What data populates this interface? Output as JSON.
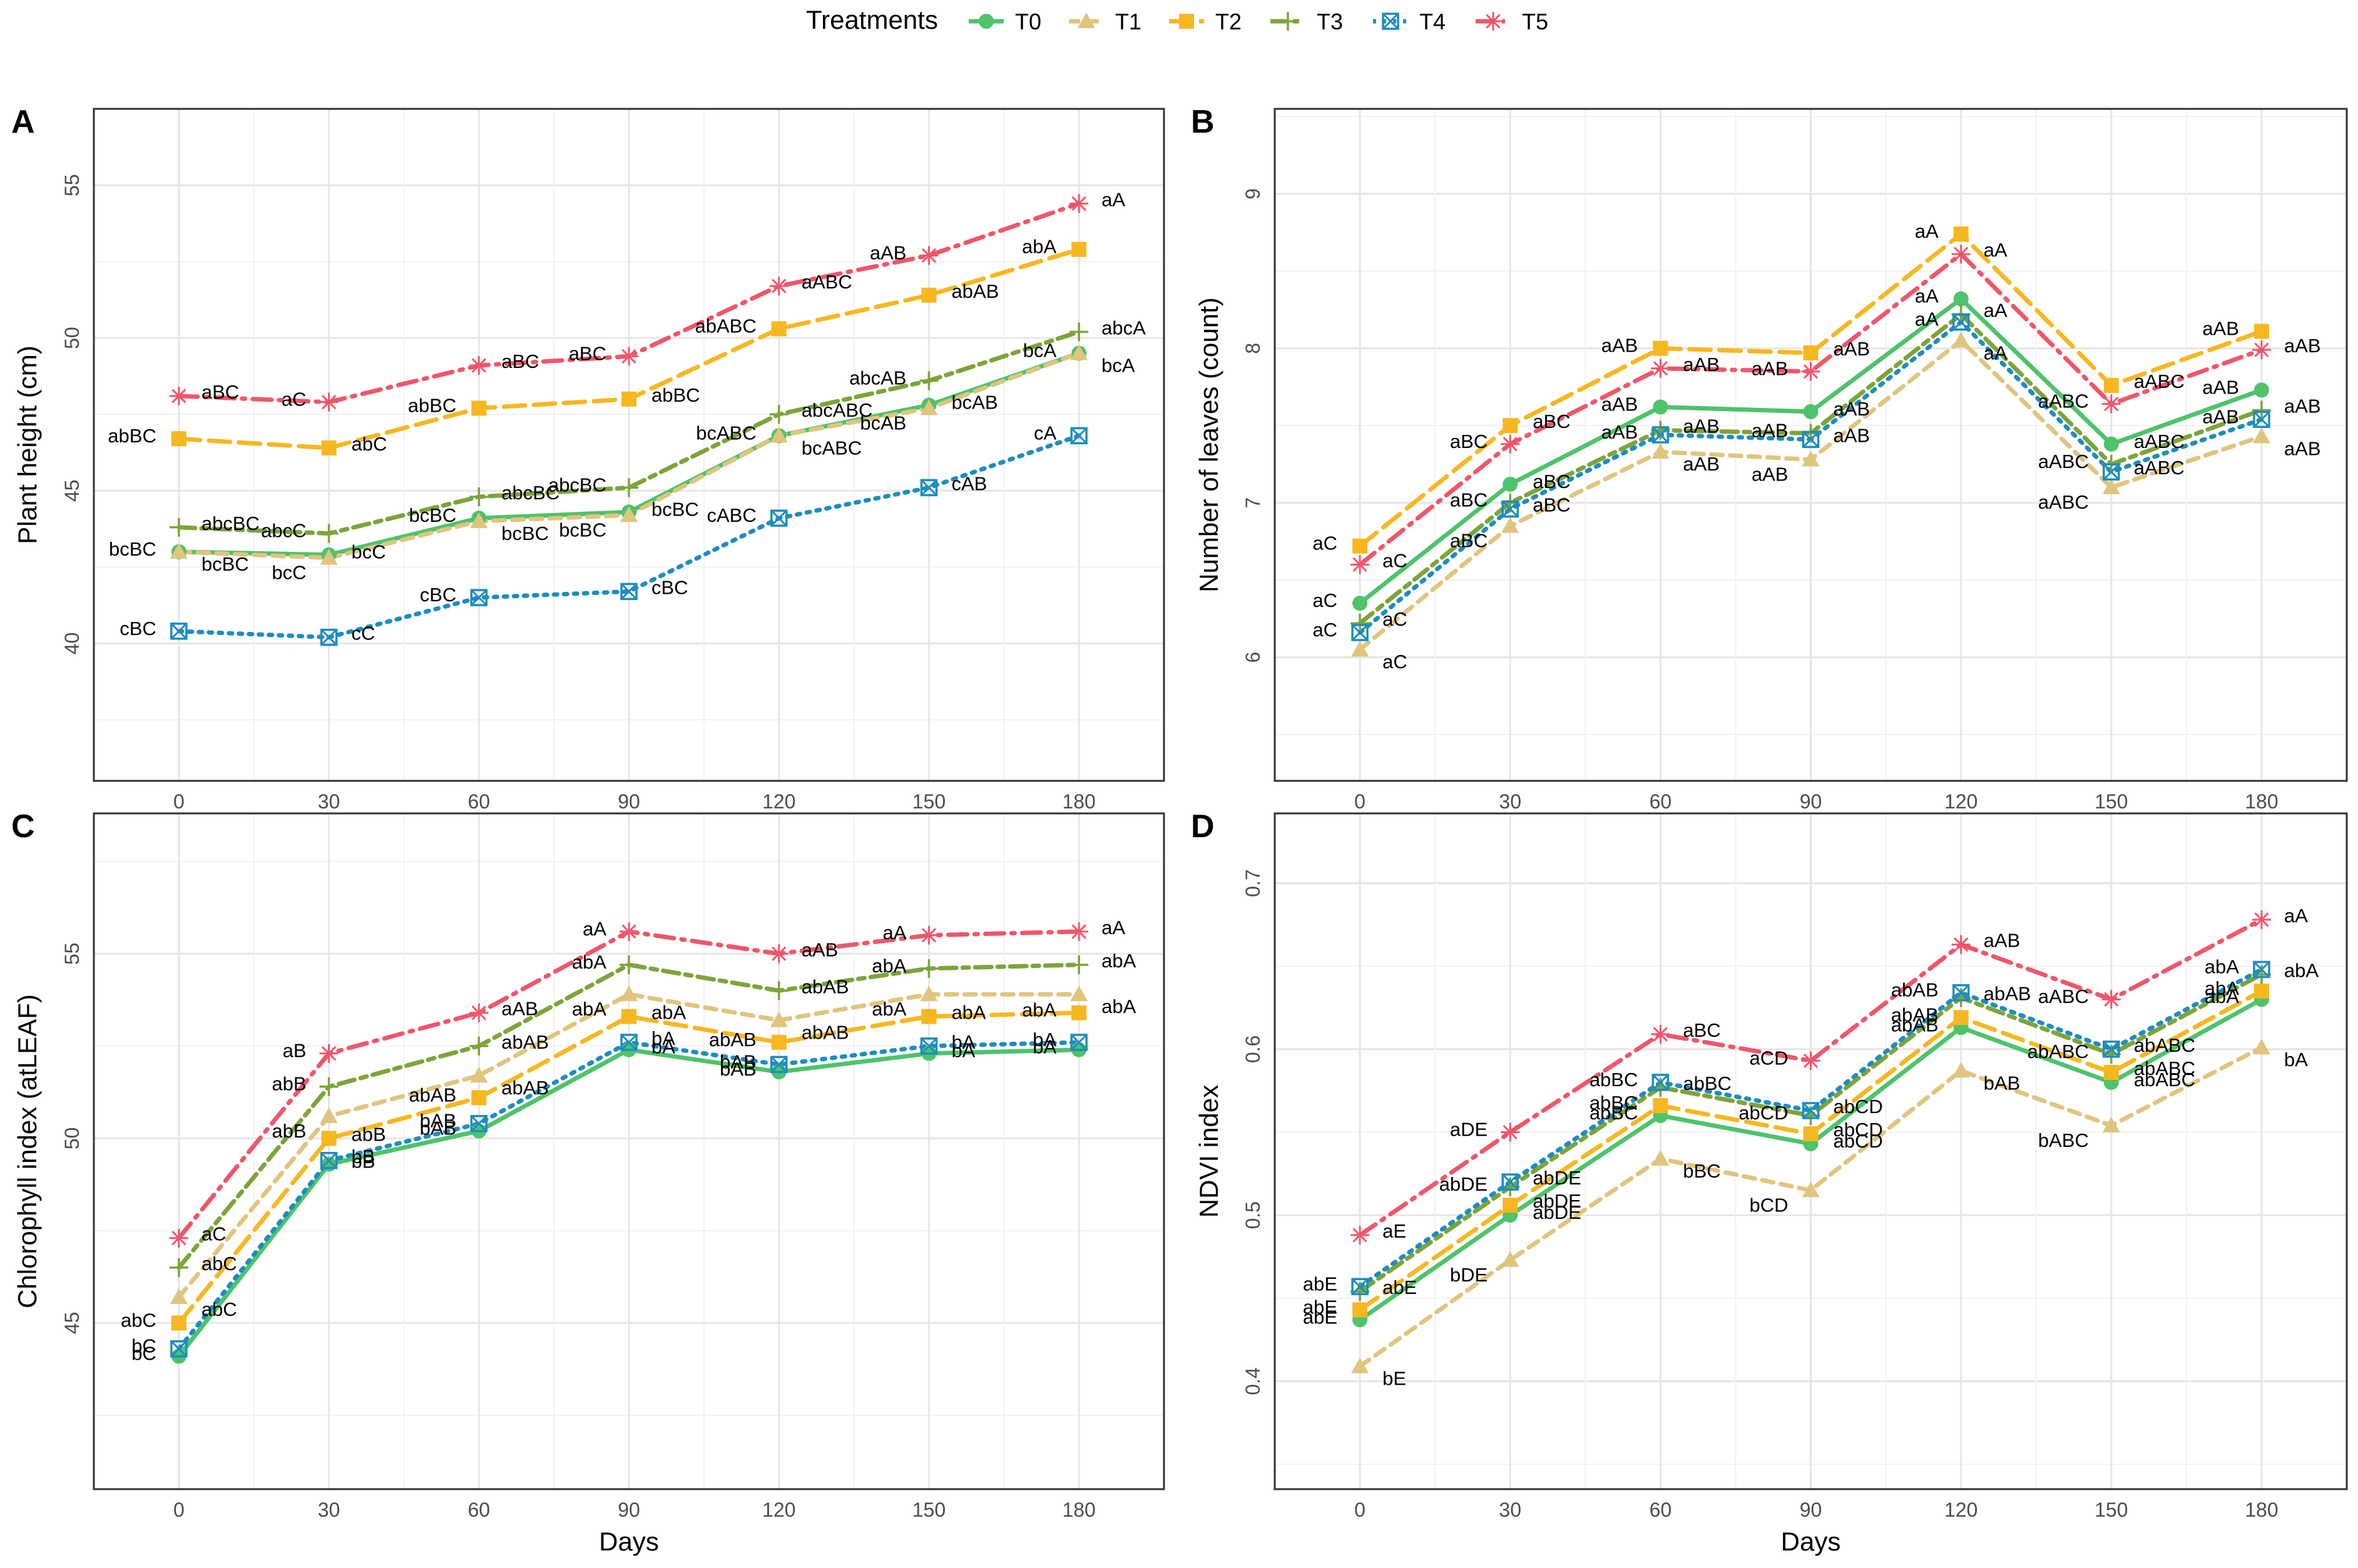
{
  "legend": {
    "title": "Treatments",
    "entries": [
      "T0",
      "T1",
      "T2",
      "T3",
      "T4",
      "T5"
    ]
  },
  "colors": {
    "T0": "#4ec36b",
    "T1": "#e0c57e",
    "T2": "#f7b720",
    "T3": "#7da43a",
    "T4": "#1d8dbf",
    "T5": "#f0566b",
    "grid_major": "#e6e6e6",
    "grid_minor": "#f2f2f2",
    "panel_border": "#333333"
  },
  "series_styles": [
    {
      "name": "T0",
      "line": "solid",
      "marker": "circle"
    },
    {
      "name": "T1",
      "line": "dashed",
      "marker": "triangle"
    },
    {
      "name": "T2",
      "line": "longdash",
      "marker": "square"
    },
    {
      "name": "T3",
      "line": "twodash",
      "marker": "plus"
    },
    {
      "name": "T4",
      "line": "dotted",
      "marker": "boxcross"
    },
    {
      "name": "T5",
      "line": "dotdash",
      "marker": "asterisk"
    }
  ],
  "chart_data": [
    {
      "panel": "A",
      "type": "line",
      "xlabel": "",
      "ylabel": "Plant height (cm)",
      "x": [
        0,
        30,
        60,
        90,
        120,
        150,
        180
      ],
      "x_ticks": [
        "0",
        "30",
        "60",
        "90",
        "120",
        "150",
        "180"
      ],
      "xlim": [
        -17,
        197
      ],
      "ylim": [
        35.5,
        57.5
      ],
      "y_ticks": [
        40,
        45,
        50,
        55
      ],
      "series": [
        {
          "name": "T0",
          "values": [
            43.0,
            42.9,
            44.1,
            44.3,
            46.8,
            47.8,
            49.5
          ],
          "labels": [
            "bcBC",
            "bcC",
            "bcBC",
            "bcBC",
            "bcABC",
            "bcAB",
            "bcA"
          ]
        },
        {
          "name": "T1",
          "values": [
            43.0,
            42.8,
            44.0,
            44.2,
            46.8,
            47.7,
            49.5
          ],
          "labels": [
            "bcBC",
            "bcC",
            "bcBC",
            "bcBC",
            "bcABC",
            "bcAB",
            "bcA"
          ]
        },
        {
          "name": "T2",
          "values": [
            46.7,
            46.4,
            47.7,
            48.0,
            50.3,
            51.4,
            52.9
          ],
          "labels": [
            "abBC",
            "abC",
            "abBC",
            "abBC",
            "abABC",
            "abAB",
            "abA"
          ]
        },
        {
          "name": "T3",
          "values": [
            43.8,
            43.6,
            44.8,
            45.1,
            47.5,
            48.6,
            50.2
          ],
          "labels": [
            "abcBC",
            "abcC",
            "abcBC",
            "abcBC",
            "abcABC",
            "abcAB",
            "abcA"
          ]
        },
        {
          "name": "T4",
          "values": [
            40.4,
            40.2,
            41.5,
            41.7,
            44.1,
            45.1,
            46.8
          ],
          "labels": [
            "cBC",
            "cC",
            "cBC",
            "cBC",
            "cABC",
            "cAB",
            "cA"
          ]
        },
        {
          "name": "T5",
          "values": [
            48.1,
            47.9,
            49.1,
            49.4,
            51.7,
            52.7,
            54.4
          ],
          "labels": [
            "aBC",
            "aC",
            "aBC",
            "aBC",
            "aABC",
            "aAB",
            "aA"
          ]
        }
      ]
    },
    {
      "panel": "B",
      "type": "line",
      "xlabel": "",
      "ylabel": "Number of leaves (count)",
      "x": [
        0,
        30,
        60,
        90,
        120,
        150,
        180
      ],
      "x_ticks": [
        "0",
        "30",
        "60",
        "90",
        "120",
        "150",
        "180"
      ],
      "xlim": [
        -17,
        197
      ],
      "ylim": [
        5.2,
        9.55
      ],
      "y_ticks": [
        6,
        7,
        8,
        9
      ],
      "series": [
        {
          "name": "T0",
          "values": [
            6.35,
            7.12,
            7.62,
            7.59,
            8.32,
            7.38,
            7.73
          ],
          "labels": [
            "aC",
            "aBC",
            "aAB",
            "aAB",
            "aA",
            "aABC",
            "aAB"
          ]
        },
        {
          "name": "T1",
          "values": [
            6.05,
            6.85,
            7.33,
            7.28,
            8.05,
            7.1,
            7.43
          ],
          "labels": [
            "aC",
            "aBC",
            "aAB",
            "aAB",
            "aA",
            "aABC",
            "aAB"
          ]
        },
        {
          "name": "T2",
          "values": [
            6.72,
            7.5,
            8.0,
            7.97,
            8.74,
            7.76,
            8.11
          ],
          "labels": [
            "aC",
            "aBC",
            "aAB",
            "aAB",
            "aA",
            "aABC",
            "aAB"
          ]
        },
        {
          "name": "T3",
          "values": [
            6.22,
            7.0,
            7.47,
            7.45,
            8.22,
            7.25,
            7.6
          ],
          "labels": [
            "aC",
            "aBC",
            "aAB",
            "aAB",
            "aA",
            "aABC",
            "aAB"
          ]
        },
        {
          "name": "T4",
          "values": [
            6.16,
            6.96,
            7.44,
            7.41,
            8.17,
            7.2,
            7.54
          ],
          "labels": [
            "aC",
            "aBC",
            "aAB",
            "aAB",
            "aA",
            "aABC",
            "aAB"
          ]
        },
        {
          "name": "T5",
          "values": [
            6.6,
            7.38,
            7.87,
            7.85,
            8.61,
            7.64,
            7.99
          ],
          "labels": [
            "aC",
            "aBC",
            "aAB",
            "aAB",
            "aA",
            "aABC",
            "aAB"
          ]
        }
      ]
    },
    {
      "panel": "C",
      "type": "line",
      "xlabel": "Days",
      "ylabel": "Chlorophyll index (atLEAF)",
      "x": [
        0,
        30,
        60,
        90,
        120,
        150,
        180
      ],
      "x_ticks": [
        "0",
        "30",
        "60",
        "90",
        "120",
        "150",
        "180"
      ],
      "xlim": [
        -17,
        197
      ],
      "ylim": [
        40.5,
        58.8
      ],
      "y_ticks": [
        45,
        50,
        55
      ],
      "series": [
        {
          "name": "T0",
          "values": [
            44.1,
            49.3,
            50.2,
            52.4,
            51.8,
            52.3,
            52.4
          ],
          "labels": [
            "bC",
            "bB",
            "bAB",
            "bA",
            "bAB",
            "bA",
            "bA"
          ]
        },
        {
          "name": "T1",
          "values": [
            45.7,
            50.6,
            51.7,
            53.9,
            53.2,
            53.9,
            53.9
          ],
          "labels": [
            "abC",
            "abB",
            "abAB",
            "abA",
            "abAB",
            "abA",
            "abA"
          ]
        },
        {
          "name": "T2",
          "values": [
            45.0,
            50.0,
            51.1,
            53.3,
            52.6,
            53.3,
            53.4
          ],
          "labels": [
            "abC",
            "abB",
            "abAB",
            "abA",
            "abAB",
            "abA",
            "abA"
          ]
        },
        {
          "name": "T3",
          "values": [
            46.5,
            51.4,
            52.5,
            54.7,
            54.0,
            54.6,
            54.7
          ],
          "labels": [
            "abC",
            "abB",
            "abAB",
            "abA",
            "abAB",
            "abA",
            "abA"
          ]
        },
        {
          "name": "T4",
          "values": [
            44.3,
            49.4,
            50.4,
            52.6,
            52.0,
            52.5,
            52.6
          ],
          "labels": [
            "bC",
            "bB",
            "bAB",
            "bA",
            "bAB",
            "bA",
            "bA"
          ]
        },
        {
          "name": "T5",
          "values": [
            47.3,
            52.3,
            53.4,
            55.6,
            55.0,
            55.5,
            55.6
          ],
          "labels": [
            "aC",
            "aB",
            "aAB",
            "aA",
            "aAB",
            "aA",
            "aA"
          ]
        }
      ]
    },
    {
      "panel": "D",
      "type": "line",
      "xlabel": "Days",
      "ylabel": "NDVI index",
      "x": [
        0,
        30,
        60,
        90,
        120,
        150,
        180
      ],
      "x_ticks": [
        "0",
        "30",
        "60",
        "90",
        "120",
        "150",
        "180"
      ],
      "xlim": [
        -17,
        197
      ],
      "ylim": [
        0.335,
        0.742
      ],
      "y_ticks": [
        0.4,
        0.5,
        0.6,
        0.7
      ],
      "series": [
        {
          "name": "T0",
          "values": [
            0.437,
            0.5,
            0.56,
            0.543,
            0.613,
            0.58,
            0.63
          ],
          "labels": [
            "abE",
            "abDE",
            "abBC",
            "abCD",
            "abAB",
            "abABC",
            "abA"
          ]
        },
        {
          "name": "T1",
          "values": [
            0.409,
            0.473,
            0.534,
            0.515,
            0.587,
            0.554,
            0.601
          ],
          "labels": [
            "bE",
            "bDE",
            "bBC",
            "bCD",
            "bAB",
            "bABC",
            "bA"
          ]
        },
        {
          "name": "T2",
          "values": [
            0.443,
            0.506,
            0.566,
            0.549,
            0.619,
            0.586,
            0.635
          ],
          "labels": [
            "abE",
            "abDE",
            "abBC",
            "abCD",
            "abAB",
            "abABC",
            "abA"
          ]
        },
        {
          "name": "T3",
          "values": [
            0.454,
            0.517,
            0.577,
            0.56,
            0.631,
            0.597,
            0.645
          ],
          "labels": [
            "abE",
            "abDE",
            "abBC",
            "abCD",
            "abAB",
            "abABC",
            "abA"
          ]
        },
        {
          "name": "T4",
          "values": [
            0.457,
            0.52,
            0.58,
            0.563,
            0.634,
            0.6,
            0.648
          ],
          "labels": [
            "abE",
            "abDE",
            "abBC",
            "abCD",
            "abAB",
            "abABC",
            "abA"
          ]
        },
        {
          "name": "T5",
          "values": [
            0.488,
            0.55,
            0.609,
            0.593,
            0.663,
            0.63,
            0.678
          ],
          "labels": [
            "aE",
            "aDE",
            "aBC",
            "aCD",
            "aAB",
            "aABC",
            "aA"
          ]
        }
      ]
    }
  ]
}
